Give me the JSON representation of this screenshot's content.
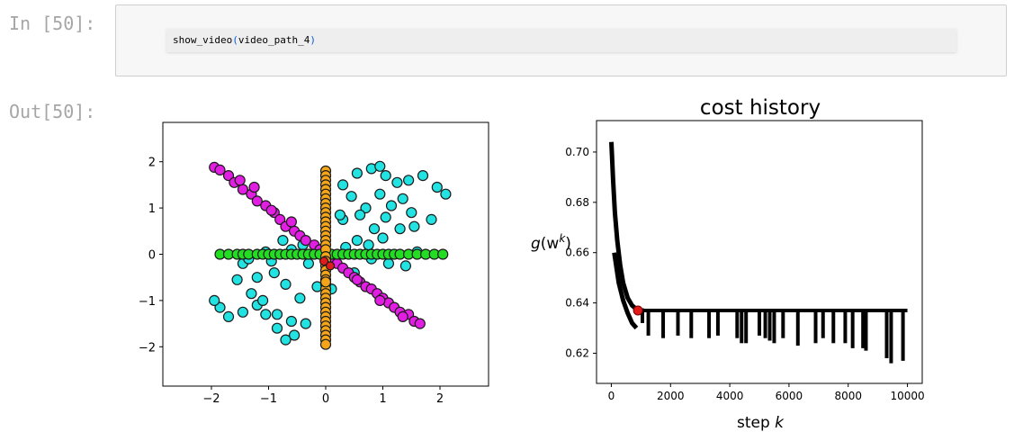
{
  "cell": {
    "in_prompt": "In [50]:",
    "out_prompt": "Out[50]:",
    "code": {
      "func": "show_video",
      "open": "(",
      "arg": "video_path_4",
      "close": ")"
    }
  },
  "colors": {
    "cyan": "#22e2e2",
    "magenta": "#e21ee2",
    "orange": "#f5a51a",
    "green": "#23dd23",
    "red": "#e01b1b",
    "cost_line": "#000000"
  },
  "chart_data": [
    {
      "type": "scatter",
      "title": "",
      "xlabel": "",
      "ylabel": "",
      "xlim": [
        -2.85,
        2.85
      ],
      "ylim": [
        -2.85,
        2.85
      ],
      "xticks": [
        "−2",
        "−1",
        "0",
        "1",
        "2"
      ],
      "yticks": [
        "2",
        "1",
        "0",
        "−1",
        "−2"
      ],
      "grid": false,
      "series": [
        {
          "color": "cyan",
          "x": [
            0.3,
            0.55,
            0.8,
            0.95,
            1.05,
            1.25,
            1.45,
            1.7,
            1.95,
            2.1,
            0.45,
            0.7,
            0.95,
            1.15,
            1.35,
            1.5,
            1.85,
            0.3,
            0.6,
            0.85,
            1.05,
            1.3,
            1.55,
            0.35,
            0.55,
            0.8,
            1.1,
            1.4,
            1.6,
            0.25,
            0.5,
            -0.35,
            -0.55,
            -0.7,
            -0.85,
            -1.05,
            -1.2,
            -1.45,
            -1.7,
            -1.85,
            -1.95,
            -0.6,
            -0.85,
            -1.1,
            -1.3,
            -1.55,
            -0.45,
            -0.7,
            -0.9,
            -1.2,
            -1.45,
            -0.3,
            -0.6,
            -0.95,
            -1.35,
            -0.75,
            -1.05,
            -0.4,
            0.75,
            1.0,
            -0.15,
            0.1
          ],
          "y": [
            1.5,
            1.75,
            1.85,
            1.9,
            1.7,
            1.55,
            1.6,
            1.7,
            1.45,
            1.3,
            1.25,
            1.0,
            1.3,
            1.05,
            1.2,
            0.9,
            0.75,
            0.75,
            0.85,
            0.55,
            0.8,
            0.55,
            0.6,
            0.15,
            0.3,
            -0.1,
            -0.2,
            -0.25,
            0.05,
            0.85,
            -0.4,
            -1.5,
            -1.75,
            -1.85,
            -1.6,
            -1.3,
            -1.1,
            -1.25,
            -1.35,
            -1.15,
            -1.0,
            -1.45,
            -1.3,
            -1.0,
            -0.85,
            -0.55,
            -0.95,
            -0.65,
            -0.4,
            -0.5,
            -0.2,
            -0.2,
            0.1,
            -0.15,
            -0.1,
            0.3,
            0.05,
            0.2,
            0.2,
            0.35,
            -0.7,
            -0.75
          ]
        },
        {
          "color": "magenta",
          "x": [
            -1.95,
            -1.85,
            -1.7,
            -1.6,
            -1.45,
            -1.3,
            -1.2,
            -1.05,
            -0.9,
            -0.8,
            -0.7,
            -0.55,
            -0.45,
            -0.35,
            -0.2,
            -0.1,
            0.0,
            0.1,
            0.2,
            0.3,
            0.4,
            0.5,
            0.6,
            0.7,
            0.8,
            0.9,
            1.0,
            1.1,
            1.2,
            1.3,
            1.45,
            1.55,
            1.65,
            -1.5,
            -1.25,
            -0.95,
            -0.6,
            0.55,
            0.95,
            1.35
          ],
          "y": [
            1.88,
            1.82,
            1.7,
            1.55,
            1.4,
            1.3,
            1.15,
            1.05,
            0.9,
            0.75,
            0.6,
            0.5,
            0.4,
            0.3,
            0.2,
            0.1,
            0.0,
            -0.1,
            -0.2,
            -0.3,
            -0.4,
            -0.5,
            -0.6,
            -0.7,
            -0.75,
            -0.85,
            -0.95,
            -1.05,
            -1.15,
            -1.25,
            -1.3,
            -1.45,
            -1.5,
            1.6,
            1.45,
            0.95,
            0.7,
            -0.55,
            -1.0,
            -1.35
          ]
        },
        {
          "color": "green",
          "x": [
            -1.85,
            -1.7,
            -1.55,
            -1.45,
            -1.35,
            -1.2,
            -1.1,
            -1.0,
            -0.9,
            -0.8,
            -0.7,
            -0.6,
            -0.5,
            -0.4,
            -0.3,
            -0.2,
            -0.1,
            0.1,
            0.2,
            0.3,
            0.4,
            0.5,
            0.6,
            0.7,
            0.8,
            0.9,
            1.0,
            1.1,
            1.2,
            1.3,
            1.45,
            1.6,
            1.75,
            1.9,
            2.05
          ],
          "y": [
            0,
            0,
            0,
            0,
            0,
            0,
            0,
            0,
            0,
            0,
            0,
            0,
            0,
            0,
            0,
            0,
            0,
            0,
            0,
            0,
            0,
            0,
            0,
            0,
            0,
            0,
            0,
            0,
            0,
            0,
            0,
            0,
            0,
            0,
            0
          ]
        },
        {
          "color": "orange",
          "x": [
            0,
            0,
            0,
            0,
            0,
            0,
            0,
            0,
            0,
            0,
            0,
            0,
            0,
            0,
            0,
            0,
            0,
            0,
            0,
            0,
            0,
            0,
            0,
            0,
            0,
            0,
            0,
            0,
            0,
            0,
            0,
            0,
            0,
            0,
            0,
            0,
            0,
            0,
            0
          ],
          "y": [
            1.8,
            1.7,
            1.6,
            1.5,
            1.4,
            1.3,
            1.2,
            1.1,
            1.0,
            0.9,
            0.8,
            0.7,
            0.6,
            0.5,
            0.4,
            0.3,
            0.2,
            0.1,
            -0.05,
            -0.15,
            -0.25,
            -0.35,
            -0.45,
            -0.55,
            -0.65,
            -0.75,
            -0.85,
            -0.95,
            -1.05,
            -1.15,
            -1.25,
            -1.35,
            -1.45,
            -1.55,
            -1.65,
            -1.75,
            -1.85,
            -1.95,
            -0.6
          ]
        },
        {
          "color": "red",
          "x": [
            -0.03,
            0.08
          ],
          "y": [
            -0.15,
            -0.25
          ]
        }
      ]
    },
    {
      "type": "line",
      "title": "cost history",
      "xlabel": "step k",
      "ylabel": "g(w^k)",
      "xlim": [
        -500,
        10500
      ],
      "ylim": [
        0.608,
        0.7125
      ],
      "xticks": [
        0,
        2000,
        4000,
        6000,
        8000,
        10000
      ],
      "yticks": [
        0.62,
        0.64,
        0.66,
        0.68,
        0.7
      ],
      "grid": false,
      "plateau": 0.637,
      "spikes": [
        [
          1050,
          0.632
        ],
        [
          1250,
          0.627
        ],
        [
          1750,
          0.626
        ],
        [
          2250,
          0.627
        ],
        [
          2700,
          0.626
        ],
        [
          3300,
          0.626
        ],
        [
          3600,
          0.627
        ],
        [
          4250,
          0.626
        ],
        [
          4400,
          0.624
        ],
        [
          4550,
          0.624
        ],
        [
          5000,
          0.627
        ],
        [
          5200,
          0.626
        ],
        [
          5350,
          0.625
        ],
        [
          5500,
          0.624
        ],
        [
          5800,
          0.626
        ],
        [
          6300,
          0.623
        ],
        [
          6900,
          0.624
        ],
        [
          7150,
          0.626
        ],
        [
          7500,
          0.624
        ],
        [
          7900,
          0.624
        ],
        [
          8150,
          0.622
        ],
        [
          8500,
          0.622
        ],
        [
          8600,
          0.621
        ],
        [
          9300,
          0.618
        ],
        [
          9450,
          0.616
        ],
        [
          9850,
          0.617
        ]
      ],
      "curve": [
        [
          0,
          0.704
        ],
        [
          60,
          0.689
        ],
        [
          120,
          0.676
        ],
        [
          200,
          0.665
        ],
        [
          300,
          0.655
        ],
        [
          400,
          0.648
        ],
        [
          550,
          0.642
        ],
        [
          700,
          0.639
        ],
        [
          900,
          0.637
        ],
        [
          1100,
          0.637
        ]
      ],
      "current_point": [
        900,
        0.637
      ]
    }
  ]
}
